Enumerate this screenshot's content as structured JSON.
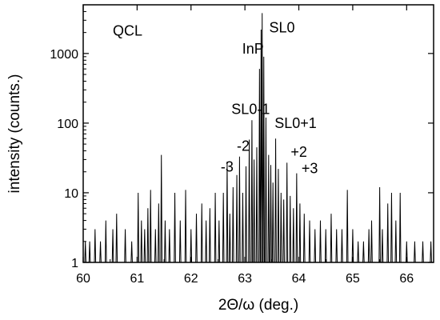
{
  "chart_data": {
    "type": "line",
    "title": "",
    "xlabel": "2Θ/ω  (deg.)",
    "ylabel": "intensity  (counts.)",
    "xlim": [
      60,
      66.5
    ],
    "ylim": [
      1,
      5000
    ],
    "yscale": "log",
    "grid": false,
    "x_ticks": [
      60,
      61,
      62,
      63,
      64,
      65,
      66
    ],
    "x_tick_labels": [
      "60",
      "61",
      "62",
      "63",
      "64",
      "65",
      "66"
    ],
    "y_ticks": [
      1,
      10,
      100,
      1000
    ],
    "y_tick_labels": [
      "1",
      "10",
      "100",
      "1000"
    ],
    "annotations": [
      {
        "text": "QCL",
        "x": 60.55,
        "y": 1800
      },
      {
        "text": "InP",
        "x": 62.95,
        "y": 1000
      },
      {
        "text": "SL0",
        "x": 63.45,
        "y": 2000
      },
      {
        "text": "SL0-1",
        "x": 62.75,
        "y": 135
      },
      {
        "text": "SL0+1",
        "x": 63.55,
        "y": 85
      },
      {
        "text": "-2",
        "x": 62.85,
        "y": 40
      },
      {
        "text": "-3",
        "x": 62.55,
        "y": 20
      },
      {
        "text": "+2",
        "x": 63.85,
        "y": 33
      },
      {
        "text": "+3",
        "x": 64.05,
        "y": 19
      }
    ],
    "series": [
      {
        "color": "#000000",
        "noise_floor": 1,
        "spikes": [
          [
            60.04,
            2
          ],
          [
            60.12,
            2
          ],
          [
            60.22,
            3
          ],
          [
            60.32,
            2
          ],
          [
            60.42,
            4
          ],
          [
            60.55,
            3
          ],
          [
            60.62,
            5
          ],
          [
            60.78,
            3
          ],
          [
            60.9,
            2
          ],
          [
            61.02,
            10
          ],
          [
            61.08,
            4
          ],
          [
            61.14,
            3
          ],
          [
            61.2,
            6
          ],
          [
            61.25,
            11
          ],
          [
            61.34,
            3
          ],
          [
            61.4,
            7
          ],
          [
            61.45,
            35
          ],
          [
            61.52,
            4
          ],
          [
            61.6,
            3
          ],
          [
            61.7,
            10
          ],
          [
            61.8,
            4
          ],
          [
            61.9,
            11
          ],
          [
            62.0,
            3
          ],
          [
            62.1,
            5
          ],
          [
            62.2,
            7
          ],
          [
            62.28,
            4
          ],
          [
            62.35,
            6
          ],
          [
            62.45,
            10
          ],
          [
            62.52,
            4
          ],
          [
            62.6,
            10
          ],
          [
            62.67,
            28
          ],
          [
            62.72,
            5
          ],
          [
            62.78,
            12
          ],
          [
            62.85,
            18
          ],
          [
            62.9,
            33
          ],
          [
            62.96,
            10
          ],
          [
            63.02,
            24
          ],
          [
            63.08,
            58
          ],
          [
            63.13,
            110
          ],
          [
            63.17,
            30
          ],
          [
            63.22,
            45
          ],
          [
            63.27,
            600
          ],
          [
            63.3,
            2200
          ],
          [
            63.32,
            3800
          ],
          [
            63.35,
            900
          ],
          [
            63.39,
            120
          ],
          [
            63.44,
            35
          ],
          [
            63.48,
            25
          ],
          [
            63.52,
            14
          ],
          [
            63.57,
            60
          ],
          [
            63.62,
            22
          ],
          [
            63.67,
            10
          ],
          [
            63.72,
            8
          ],
          [
            63.78,
            27
          ],
          [
            63.84,
            9
          ],
          [
            63.9,
            6
          ],
          [
            63.96,
            19
          ],
          [
            64.02,
            7
          ],
          [
            64.1,
            5
          ],
          [
            64.2,
            4
          ],
          [
            64.3,
            3
          ],
          [
            64.4,
            4
          ],
          [
            64.5,
            3
          ],
          [
            64.6,
            5
          ],
          [
            64.7,
            3
          ],
          [
            64.8,
            3
          ],
          [
            64.9,
            11
          ],
          [
            65.0,
            3
          ],
          [
            65.1,
            2
          ],
          [
            65.2,
            2
          ],
          [
            65.3,
            3
          ],
          [
            65.35,
            4
          ],
          [
            65.5,
            12
          ],
          [
            65.55,
            3
          ],
          [
            65.65,
            7
          ],
          [
            65.72,
            10
          ],
          [
            65.8,
            4
          ],
          [
            65.88,
            10
          ],
          [
            66.0,
            2
          ],
          [
            66.15,
            2
          ],
          [
            66.3,
            2
          ],
          [
            66.45,
            2
          ]
        ]
      }
    ]
  }
}
